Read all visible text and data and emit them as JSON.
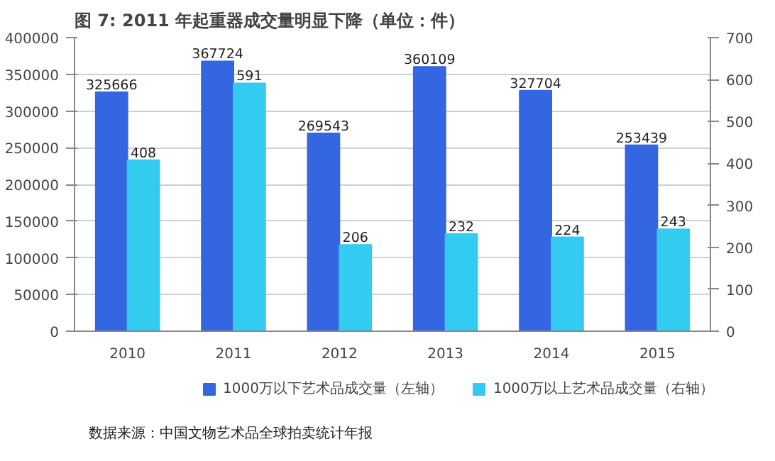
{
  "chart_data": {
    "type": "bar",
    "title": "图 7:  2011 年起重器成交量明显下降（单位：件）",
    "categories": [
      "2010",
      "2011",
      "2012",
      "2013",
      "2014",
      "2015"
    ],
    "series": [
      {
        "name": "1000万以下艺术品成交量（左轴）",
        "color": "#3366e0",
        "values": [
          325666,
          367724,
          269543,
          360109,
          327704,
          253439
        ]
      },
      {
        "name": "1000万以上艺术品成交量（右轴）",
        "color": "#33ccf0",
        "values": [
          408,
          591,
          206,
          232,
          224,
          243
        ],
        "axis": "y2"
      }
    ],
    "ylim": [
      0,
      400000
    ],
    "yticks": [
      0,
      50000,
      100000,
      150000,
      200000,
      250000,
      300000,
      350000,
      400000
    ],
    "y2lim": [
      0,
      700
    ],
    "y2ticks": [
      0,
      100,
      200,
      300,
      400,
      500,
      600,
      700
    ],
    "grid": "y",
    "legend": "bottom",
    "data_labels": true,
    "annotations": [
      "数据来源：中国文物艺术品全球拍卖统计年报"
    ]
  }
}
